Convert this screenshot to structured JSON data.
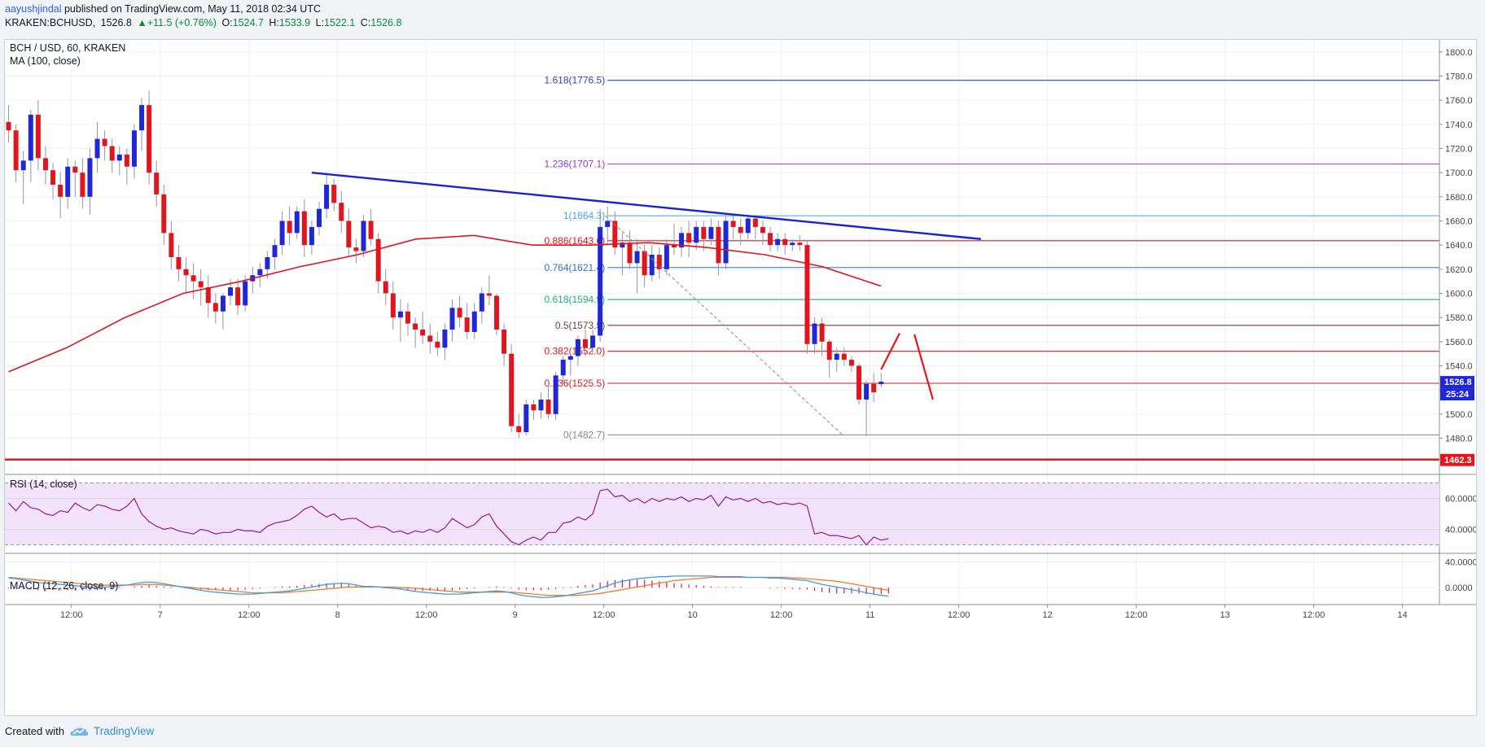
{
  "header": {
    "author": "aayushjindal",
    "published_text": " published on TradingView.com, May 11, 2018 02:34 UTC"
  },
  "quote": {
    "symbol": "KRAKEN:BCHUSD,",
    "last": "1526.8",
    "change": "+11.5 (+0.76%)",
    "open_label": "O:",
    "open": "1524.7",
    "high_label": "H:",
    "high": "1533.9",
    "low_label": "L:",
    "low": "1522.1",
    "close_label": "C:",
    "close": "1526.8"
  },
  "legend": {
    "pair": "BCH / USD, 60, KRAKEN",
    "ma": "MA (100, close)",
    "rsi": "RSI (14, close)",
    "macd": "MACD (12, 26, close, 9)"
  },
  "colors": {
    "up": "#1f28d6",
    "down": "#e0161e",
    "ma": "#e0161e",
    "trend": "#1a23d1",
    "support": "#e8141b",
    "rsi": "#8e1b8f",
    "rsi_band": "#f2e3fb",
    "macd": "#3f9ce6",
    "signal": "#f07d2a",
    "hist": "#e0145c"
  },
  "price_badge": {
    "value": "1526.8",
    "timer": "25:24"
  },
  "support_badge": "1462.3",
  "footer": {
    "created": "Created with",
    "brand": "TradingView"
  },
  "chart_data": {
    "type": "candlestick",
    "title": "BCH / USD, 60, KRAKEN",
    "y_range": [
      1450,
      1810
    ],
    "y_ticks": [
      "1800.0",
      "1780.0",
      "1760.0",
      "1740.0",
      "1720.0",
      "1700.0",
      "1680.0",
      "1660.0",
      "1640.0",
      "1620.0",
      "1600.0",
      "1580.0",
      "1560.0",
      "1540.0",
      "1520.0",
      "1500.0",
      "1480.0"
    ],
    "x_tick_labels": [
      "12:00",
      "7",
      "12:00",
      "8",
      "12:00",
      "9",
      "12:00",
      "10",
      "12:00",
      "11",
      "12:00",
      "12",
      "12:00",
      "13",
      "12:00",
      "14"
    ],
    "x_tick_hours": [
      12,
      24,
      36,
      48,
      60,
      72,
      84,
      96,
      108,
      120,
      132,
      144,
      156,
      168,
      180,
      192
    ],
    "x_hour_range": [
      3,
      197
    ],
    "bar_step_hours": 1,
    "candles_ohlc": [
      [
        1742,
        1756,
        1725,
        1735
      ],
      [
        1735,
        1740,
        1692,
        1702
      ],
      [
        1702,
        1718,
        1674,
        1710
      ],
      [
        1710,
        1752,
        1692,
        1748
      ],
      [
        1748,
        1760,
        1702,
        1712
      ],
      [
        1712,
        1722,
        1690,
        1702
      ],
      [
        1702,
        1708,
        1678,
        1690
      ],
      [
        1690,
        1700,
        1662,
        1680
      ],
      [
        1680,
        1712,
        1670,
        1705
      ],
      [
        1705,
        1710,
        1680,
        1700
      ],
      [
        1700,
        1712,
        1670,
        1680
      ],
      [
        1680,
        1720,
        1665,
        1712
      ],
      [
        1712,
        1742,
        1700,
        1728
      ],
      [
        1728,
        1735,
        1710,
        1722
      ],
      [
        1722,
        1728,
        1700,
        1710
      ],
      [
        1710,
        1722,
        1698,
        1715
      ],
      [
        1715,
        1720,
        1690,
        1705
      ],
      [
        1705,
        1740,
        1695,
        1735
      ],
      [
        1735,
        1762,
        1718,
        1756
      ],
      [
        1756,
        1768,
        1690,
        1700
      ],
      [
        1700,
        1710,
        1672,
        1682
      ],
      [
        1682,
        1690,
        1640,
        1650
      ],
      [
        1650,
        1660,
        1620,
        1630
      ],
      [
        1630,
        1640,
        1610,
        1620
      ],
      [
        1620,
        1630,
        1600,
        1615
      ],
      [
        1615,
        1625,
        1595,
        1610
      ],
      [
        1610,
        1620,
        1590,
        1605
      ],
      [
        1605,
        1615,
        1580,
        1592
      ],
      [
        1592,
        1600,
        1575,
        1585
      ],
      [
        1585,
        1600,
        1570,
        1598
      ],
      [
        1598,
        1612,
        1590,
        1605
      ],
      [
        1605,
        1612,
        1582,
        1590
      ],
      [
        1590,
        1615,
        1585,
        1610
      ],
      [
        1610,
        1622,
        1600,
        1615
      ],
      [
        1615,
        1625,
        1605,
        1620
      ],
      [
        1620,
        1635,
        1612,
        1630
      ],
      [
        1630,
        1645,
        1620,
        1640
      ],
      [
        1640,
        1668,
        1632,
        1660
      ],
      [
        1660,
        1672,
        1640,
        1650
      ],
      [
        1650,
        1672,
        1645,
        1668
      ],
      [
        1668,
        1678,
        1630,
        1640
      ],
      [
        1640,
        1660,
        1632,
        1655
      ],
      [
        1655,
        1676,
        1648,
        1670
      ],
      [
        1670,
        1700,
        1662,
        1690
      ],
      [
        1690,
        1695,
        1668,
        1675
      ],
      [
        1675,
        1685,
        1650,
        1660
      ],
      [
        1660,
        1670,
        1630,
        1638
      ],
      [
        1638,
        1645,
        1625,
        1635
      ],
      [
        1635,
        1665,
        1630,
        1660
      ],
      [
        1660,
        1670,
        1640,
        1645
      ],
      [
        1645,
        1650,
        1600,
        1610
      ],
      [
        1610,
        1620,
        1590,
        1600
      ],
      [
        1600,
        1610,
        1570,
        1580
      ],
      [
        1580,
        1595,
        1560,
        1585
      ],
      [
        1585,
        1592,
        1565,
        1575
      ],
      [
        1575,
        1580,
        1555,
        1570
      ],
      [
        1570,
        1585,
        1558,
        1565
      ],
      [
        1565,
        1575,
        1550,
        1560
      ],
      [
        1560,
        1568,
        1548,
        1555
      ],
      [
        1555,
        1575,
        1545,
        1570
      ],
      [
        1570,
        1595,
        1560,
        1588
      ],
      [
        1588,
        1598,
        1572,
        1580
      ],
      [
        1580,
        1592,
        1562,
        1568
      ],
      [
        1568,
        1592,
        1562,
        1585
      ],
      [
        1585,
        1605,
        1575,
        1600
      ],
      [
        1600,
        1615,
        1590,
        1598
      ],
      [
        1598,
        1600,
        1565,
        1570
      ],
      [
        1570,
        1575,
        1540,
        1550
      ],
      [
        1550,
        1558,
        1485,
        1490
      ],
      [
        1490,
        1500,
        1480,
        1485
      ],
      [
        1485,
        1512,
        1482,
        1508
      ],
      [
        1508,
        1512,
        1495,
        1503
      ],
      [
        1503,
        1518,
        1496,
        1512
      ],
      [
        1512,
        1525,
        1496,
        1500
      ],
      [
        1500,
        1535,
        1495,
        1532
      ],
      [
        1532,
        1548,
        1525,
        1545
      ],
      [
        1545,
        1550,
        1532,
        1548
      ],
      [
        1548,
        1565,
        1540,
        1562
      ],
      [
        1562,
        1570,
        1548,
        1555
      ],
      [
        1555,
        1570,
        1550,
        1565
      ],
      [
        1565,
        1670,
        1560,
        1655
      ],
      [
        1655,
        1672,
        1640,
        1660
      ],
      [
        1660,
        1668,
        1632,
        1638
      ],
      [
        1638,
        1650,
        1615,
        1642
      ],
      [
        1642,
        1652,
        1620,
        1625
      ],
      [
        1625,
        1645,
        1600,
        1635
      ],
      [
        1635,
        1640,
        1605,
        1615
      ],
      [
        1615,
        1640,
        1610,
        1632
      ],
      [
        1632,
        1638,
        1612,
        1620
      ],
      [
        1620,
        1645,
        1615,
        1640
      ],
      [
        1640,
        1658,
        1632,
        1638
      ],
      [
        1638,
        1655,
        1630,
        1650
      ],
      [
        1650,
        1660,
        1630,
        1642
      ],
      [
        1642,
        1660,
        1636,
        1655
      ],
      [
        1655,
        1660,
        1635,
        1645
      ],
      [
        1645,
        1662,
        1640,
        1655
      ],
      [
        1655,
        1660,
        1615,
        1625
      ],
      [
        1625,
        1665,
        1620,
        1660
      ],
      [
        1660,
        1664,
        1645,
        1655
      ],
      [
        1655,
        1662,
        1640,
        1650
      ],
      [
        1650,
        1665,
        1645,
        1662
      ],
      [
        1662,
        1664,
        1645,
        1655
      ],
      [
        1655,
        1660,
        1640,
        1650
      ],
      [
        1650,
        1655,
        1635,
        1640
      ],
      [
        1640,
        1650,
        1635,
        1645
      ],
      [
        1645,
        1650,
        1632,
        1640
      ],
      [
        1640,
        1645,
        1635,
        1642
      ],
      [
        1642,
        1648,
        1635,
        1640
      ],
      [
        1640,
        1644,
        1550,
        1558
      ],
      [
        1558,
        1580,
        1550,
        1575
      ],
      [
        1575,
        1580,
        1548,
        1560
      ],
      [
        1560,
        1562,
        1530,
        1545
      ],
      [
        1545,
        1555,
        1535,
        1550
      ],
      [
        1550,
        1555,
        1540,
        1545
      ],
      [
        1545,
        1548,
        1535,
        1540
      ],
      [
        1540,
        1542,
        1508,
        1512
      ],
      [
        1512,
        1528,
        1482,
        1525
      ],
      [
        1525,
        1534,
        1510,
        1518
      ],
      [
        1524.7,
        1533.9,
        1522.1,
        1526.8
      ]
    ],
    "ma_period": 100,
    "ma_anchor_values": [
      1535,
      1555,
      1580,
      1600,
      1610,
      1622,
      1632,
      1645,
      1648,
      1640,
      1640,
      1642,
      1638,
      1632,
      1622,
      1606
    ],
    "trendline": {
      "from_price": 1700,
      "to_price": 1645
    },
    "support_level": 1462.3,
    "fib_levels": [
      {
        "label": "1.618(1776.5)",
        "value": 1776.5,
        "color": "#2a3fd6"
      },
      {
        "label": "1.236(1707.1)",
        "value": 1707.1,
        "color": "#9b35d8"
      },
      {
        "label": "1(1664.3)",
        "value": 1664.3,
        "color": "#4aa3e0"
      },
      {
        "label": "0.886(1643.6)",
        "value": 1643.6,
        "color": "#e0161e"
      },
      {
        "label": "0.764(1621.4)",
        "value": 1621.4,
        "color": "#2e6fd6"
      },
      {
        "label": "0.618(1594.9)",
        "value": 1594.9,
        "color": "#1cae77"
      },
      {
        "label": "0.5(1573.5)",
        "value": 1573.5,
        "color": "#7a3a3a"
      },
      {
        "label": "0.382(1552.0)",
        "value": 1552.0,
        "color": "#e0161e"
      },
      {
        "label": "0.236(1525.5)",
        "value": 1525.5,
        "color": "#e0161e"
      },
      {
        "label": "0(1482.7)",
        "value": 1482.7,
        "color": "#8a8a8a"
      }
    ],
    "rsi": {
      "ticks": [
        "60.0000",
        "40.0000"
      ],
      "range": [
        25,
        75
      ],
      "values": [
        57,
        52,
        58,
        54,
        53,
        50,
        49,
        52,
        51,
        57,
        54,
        52,
        56,
        55,
        53,
        52,
        55,
        60,
        50,
        45,
        42,
        40,
        41,
        39,
        38,
        37,
        40,
        39,
        37,
        38,
        38,
        40,
        39,
        39,
        38,
        42,
        44,
        45,
        46,
        49,
        53,
        55,
        51,
        48,
        50,
        46,
        47,
        47,
        44,
        41,
        42,
        41,
        38,
        39,
        37,
        39,
        38,
        40,
        38,
        41,
        47,
        44,
        41,
        43,
        48,
        50,
        42,
        37,
        32,
        30,
        33,
        35,
        33,
        38,
        38,
        44,
        45,
        48,
        46,
        50,
        65,
        66,
        61,
        62,
        58,
        60,
        57,
        60,
        58,
        60,
        59,
        61,
        58,
        60,
        59,
        62,
        55,
        61,
        59,
        60,
        58,
        60,
        57,
        58,
        56,
        57,
        56,
        57,
        55,
        37,
        38,
        36,
        36,
        35,
        34,
        36,
        30,
        35,
        33,
        34
      ]
    },
    "macd": {
      "ticks": [
        "40.0000",
        "0.0000"
      ],
      "range": [
        -25,
        52
      ],
      "macd_values": [
        15,
        14,
        12,
        10,
        8,
        7,
        6,
        5,
        4,
        3,
        2,
        1,
        0,
        1,
        2,
        3,
        4,
        6,
        8,
        9,
        8,
        6,
        4,
        2,
        0,
        -2,
        -4,
        -6,
        -7,
        -8,
        -9,
        -10,
        -10,
        -10,
        -9,
        -8,
        -7,
        -6,
        -5,
        -3,
        -1,
        1,
        3,
        5,
        6,
        7,
        6,
        4,
        2,
        2,
        1,
        0,
        -1,
        -2,
        -4,
        -6,
        -7,
        -8,
        -9,
        -10,
        -10,
        -10,
        -9,
        -8,
        -7,
        -6,
        -5,
        -6,
        -8,
        -11,
        -13,
        -14,
        -15,
        -15,
        -14,
        -13,
        -11,
        -9,
        -7,
        -5,
        -1,
        3,
        7,
        10,
        12,
        14,
        15,
        16,
        17,
        17,
        18,
        18,
        18,
        18,
        18,
        18,
        17,
        17,
        17,
        17,
        16,
        16,
        16,
        15,
        15,
        14,
        13,
        12,
        11,
        8,
        5,
        3,
        1,
        -1,
        -3,
        -5,
        -8,
        -10,
        -12,
        -13
      ],
      "signal_values": [
        16,
        15,
        14,
        13,
        12,
        11,
        10,
        9,
        8,
        7,
        6,
        5,
        4,
        4,
        4,
        4,
        4,
        4,
        5,
        5,
        5,
        4,
        3,
        2,
        1,
        0,
        -1,
        -2,
        -3,
        -4,
        -5,
        -6,
        -7,
        -8,
        -8,
        -8,
        -8,
        -8,
        -7,
        -6,
        -5,
        -4,
        -3,
        -2,
        -1,
        0,
        1,
        1,
        1,
        1,
        1,
        1,
        1,
        0,
        0,
        -1,
        -2,
        -3,
        -4,
        -5,
        -6,
        -7,
        -7,
        -7,
        -7,
        -7,
        -7,
        -7,
        -7,
        -8,
        -9,
        -10,
        -11,
        -12,
        -12,
        -12,
        -12,
        -12,
        -11,
        -10,
        -9,
        -7,
        -5,
        -3,
        -1,
        1,
        3,
        5,
        7,
        9,
        11,
        12,
        13,
        14,
        15,
        16,
        16,
        16,
        16,
        16,
        16,
        16,
        16,
        16,
        16,
        16,
        15,
        15,
        14,
        13,
        12,
        11,
        10,
        8,
        6,
        4,
        2,
        0,
        -2,
        -4
      ]
    }
  }
}
